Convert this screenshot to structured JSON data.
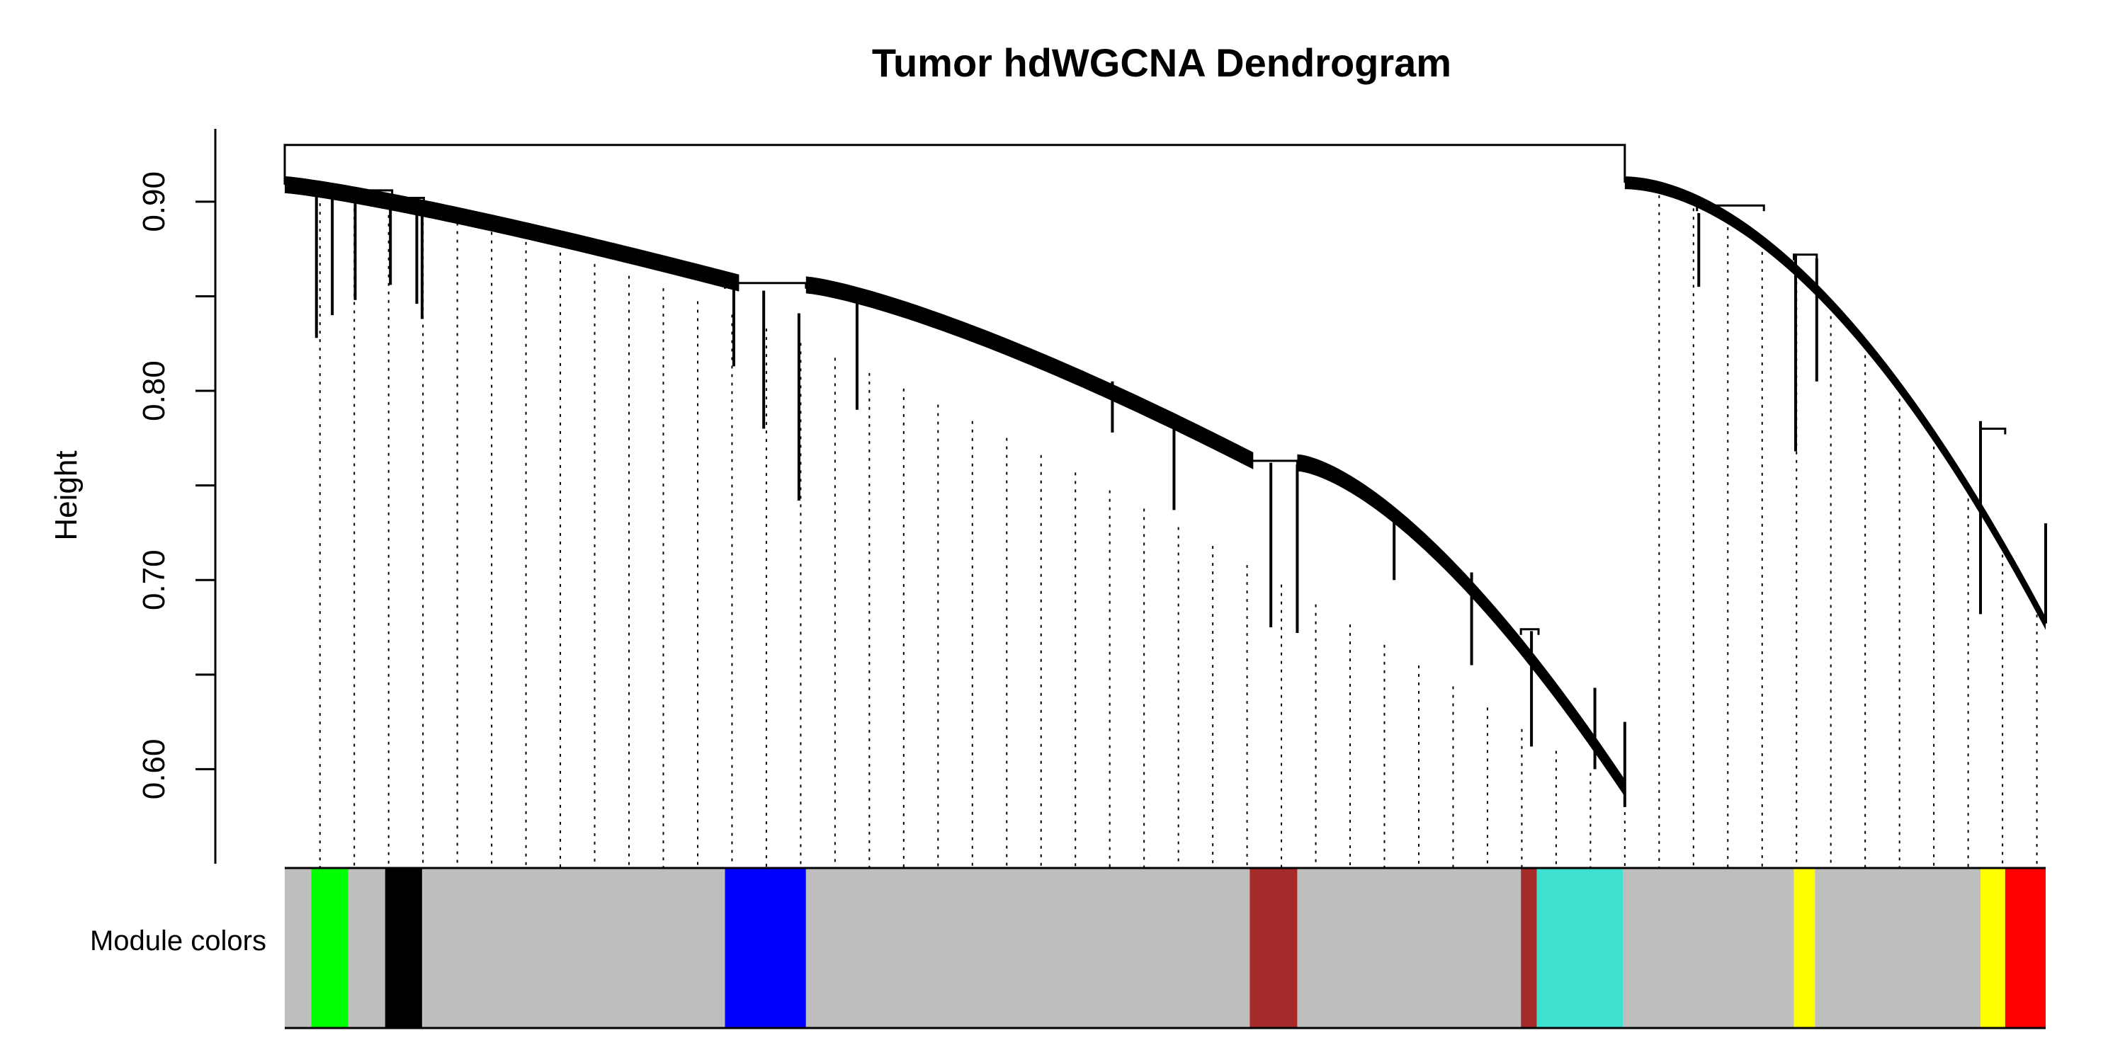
{
  "chart_data": {
    "type": "dendrogram",
    "title": "Tumor hdWGCNA Dendrogram",
    "ylabel": "Height",
    "ylim": [
      0.55,
      0.94
    ],
    "yticks": [
      {
        "value": 0.9,
        "label": "0.90"
      },
      {
        "value": 0.85,
        "label": ""
      },
      {
        "value": 0.8,
        "label": "0.80"
      },
      {
        "value": 0.75,
        "label": ""
      },
      {
        "value": 0.7,
        "label": "0.70"
      },
      {
        "value": 0.65,
        "label": ""
      },
      {
        "value": 0.6,
        "label": "0.60"
      }
    ],
    "color_bar_label": "Module colors",
    "module_colors": [
      {
        "module": "grey",
        "color": "#BEBEBE",
        "start": 0.0,
        "end": 0.015
      },
      {
        "module": "green",
        "color": "#00FF00",
        "start": 0.015,
        "end": 0.036
      },
      {
        "module": "grey",
        "color": "#BEBEBE",
        "start": 0.036,
        "end": 0.057
      },
      {
        "module": "black",
        "color": "#000000",
        "start": 0.057,
        "end": 0.078
      },
      {
        "module": "grey",
        "color": "#BEBEBE",
        "start": 0.078,
        "end": 0.25
      },
      {
        "module": "blue",
        "color": "#0000FF",
        "start": 0.25,
        "end": 0.296
      },
      {
        "module": "grey",
        "color": "#BEBEBE",
        "start": 0.296,
        "end": 0.548
      },
      {
        "module": "brown",
        "color": "#A52A2A",
        "start": 0.548,
        "end": 0.575
      },
      {
        "module": "grey",
        "color": "#BEBEBE",
        "start": 0.575,
        "end": 0.702
      },
      {
        "module": "brown",
        "color": "#A52A2A",
        "start": 0.702,
        "end": 0.711
      },
      {
        "module": "turquoise",
        "color": "#40E0D0",
        "start": 0.711,
        "end": 0.76
      },
      {
        "module": "grey",
        "color": "#BEBEBE",
        "start": 0.76,
        "end": 0.857
      },
      {
        "module": "yellow",
        "color": "#FFFF00",
        "start": 0.857,
        "end": 0.869
      },
      {
        "module": "grey",
        "color": "#BEBEBE",
        "start": 0.869,
        "end": 0.963
      },
      {
        "module": "yellow",
        "color": "#FFFF00",
        "start": 0.963,
        "end": 0.977
      },
      {
        "module": "red",
        "color": "#FF0000",
        "start": 0.977,
        "end": 1.0
      }
    ],
    "branches": [
      {
        "name": "left-main",
        "x_start": 0.0,
        "x_end": 0.761,
        "y_start": 0.909,
        "y_end": 0.59,
        "join_height": 0.93
      },
      {
        "name": "right-main",
        "x_start": 0.761,
        "x_end": 1.0,
        "y_start": 0.91,
        "y_end": 0.677,
        "join_height": 0.93
      }
    ]
  }
}
